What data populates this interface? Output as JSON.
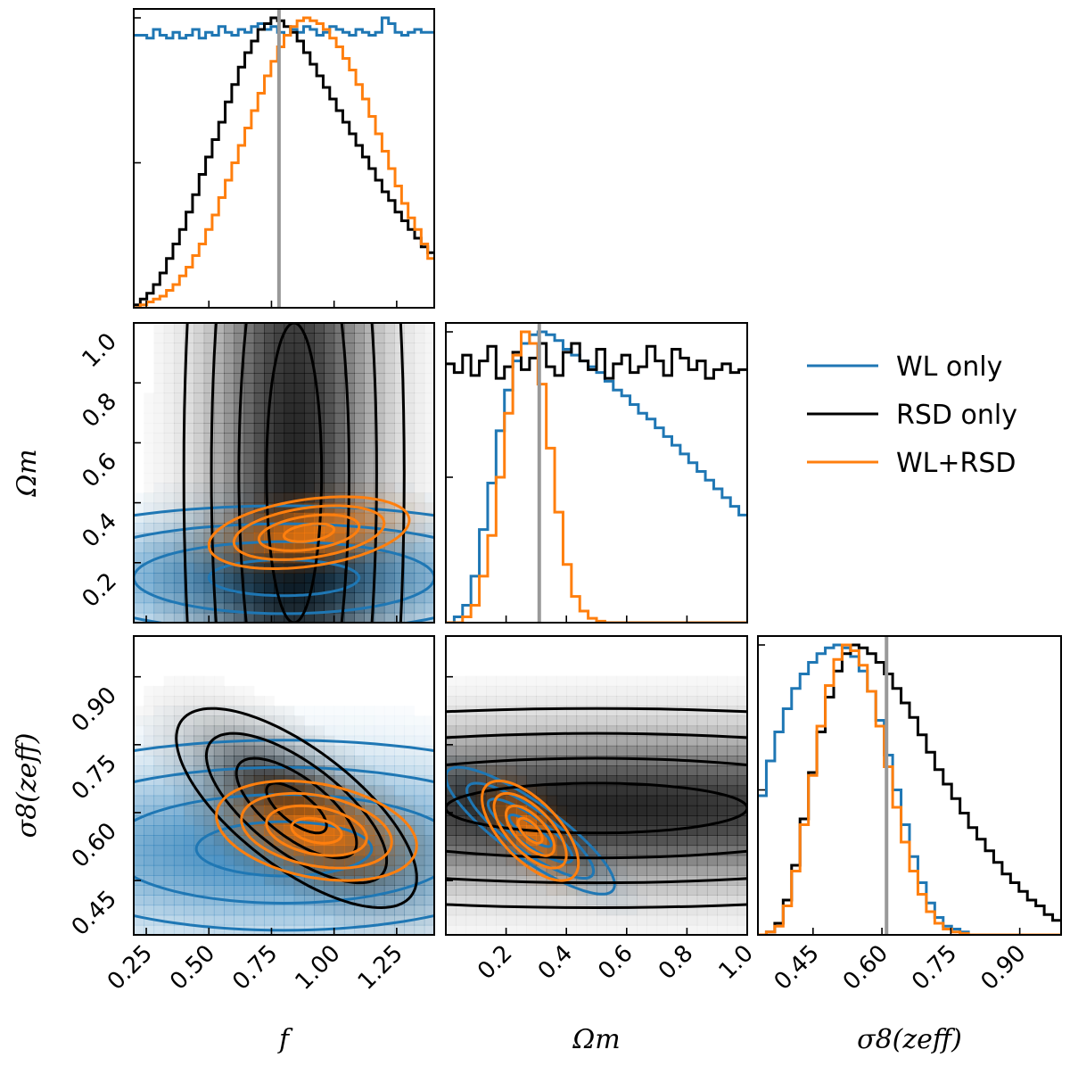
{
  "chart_data": {
    "type": "corner",
    "parameters": [
      {
        "key": "f",
        "label": "f",
        "range": [
          0.2,
          1.4
        ],
        "ticks": [
          0.25,
          0.5,
          0.75,
          1.0,
          1.25
        ],
        "tick_labels": [
          "0.25",
          "0.50",
          "0.75",
          "1.00",
          "1.25"
        ]
      },
      {
        "key": "Om",
        "label": "Ωm",
        "range": [
          0.0,
          1.0
        ],
        "ticks": [
          0.2,
          0.4,
          0.6,
          0.8,
          1.0
        ],
        "tick_labels": [
          "0.2",
          "0.4",
          "0.6",
          "0.8",
          "1.0"
        ]
      },
      {
        "key": "s8",
        "label": "σ8(zeff)",
        "range": [
          0.33,
          0.99
        ],
        "ticks": [
          0.45,
          0.6,
          0.75,
          0.9
        ],
        "tick_labels": [
          "0.45",
          "0.60",
          "0.75",
          "0.90"
        ]
      }
    ],
    "y_tick_labels": {
      "Om": [
        "0.2",
        "0.4",
        "0.6",
        "0.8",
        "1.0"
      ],
      "s8": [
        "0.45",
        "0.60",
        "0.75",
        "0.90"
      ]
    },
    "truth": {
      "f": 0.78,
      "Om": 0.31,
      "s8": 0.61
    },
    "series": [
      {
        "name": "WL only",
        "color": "#1f77b4"
      },
      {
        "name": "RSD only",
        "color": "#000000"
      },
      {
        "name": "WL+RSD",
        "color": "#ff7f0e"
      }
    ],
    "histograms": {
      "f": {
        "WL only": [
          0.94,
          0.94,
          0.93,
          0.96,
          0.94,
          0.93,
          0.95,
          0.93,
          0.94,
          0.96,
          0.93,
          0.95,
          0.94,
          0.97,
          0.95,
          0.94,
          0.96,
          0.95,
          0.97,
          0.98,
          0.96,
          0.97,
          0.95,
          0.94,
          0.96,
          0.95,
          0.97,
          0.96,
          0.94,
          0.95,
          0.97,
          0.96,
          0.95,
          0.94,
          0.96,
          0.95,
          0.94,
          0.95,
          1.0,
          0.98,
          0.95,
          0.94,
          0.95,
          0.96,
          0.95,
          0.95
        ],
        "RSD only": [
          0.01,
          0.03,
          0.05,
          0.08,
          0.12,
          0.17,
          0.22,
          0.27,
          0.33,
          0.39,
          0.46,
          0.52,
          0.58,
          0.64,
          0.71,
          0.77,
          0.83,
          0.88,
          0.92,
          0.96,
          0.98,
          1.0,
          0.99,
          0.97,
          0.95,
          0.92,
          0.88,
          0.84,
          0.8,
          0.76,
          0.72,
          0.68,
          0.64,
          0.6,
          0.56,
          0.52,
          0.48,
          0.44,
          0.4,
          0.37,
          0.33,
          0.3,
          0.27,
          0.24,
          0.21,
          0.19
        ],
        "WL+RSD": [
          0.0,
          0.01,
          0.02,
          0.03,
          0.04,
          0.06,
          0.08,
          0.11,
          0.14,
          0.18,
          0.22,
          0.27,
          0.32,
          0.38,
          0.44,
          0.5,
          0.56,
          0.62,
          0.68,
          0.74,
          0.8,
          0.85,
          0.9,
          0.94,
          0.97,
          0.99,
          1.0,
          0.99,
          0.98,
          0.96,
          0.93,
          0.9,
          0.86,
          0.82,
          0.77,
          0.72,
          0.66,
          0.6,
          0.54,
          0.48,
          0.42,
          0.36,
          0.31,
          0.27,
          0.22,
          0.17
        ]
      },
      "Om": {
        "WL only": [
          0.0,
          0.02,
          0.06,
          0.16,
          0.32,
          0.48,
          0.66,
          0.8,
          0.9,
          0.96,
          0.99,
          1.0,
          0.99,
          0.97,
          0.94,
          0.92,
          0.9,
          0.88,
          0.86,
          0.83,
          0.8,
          0.78,
          0.75,
          0.72,
          0.7,
          0.67,
          0.64,
          0.61,
          0.58,
          0.55,
          0.52,
          0.49,
          0.46,
          0.43,
          0.4,
          0.37
        ],
        "RSD only": [
          0.89,
          0.86,
          0.92,
          0.85,
          0.9,
          0.95,
          0.84,
          0.88,
          0.93,
          0.87,
          0.91,
          0.96,
          0.88,
          0.85,
          0.93,
          0.96,
          0.9,
          0.87,
          0.94,
          0.84,
          0.89,
          0.92,
          0.86,
          0.88,
          0.95,
          0.9,
          0.85,
          0.94,
          0.91,
          0.87,
          0.9,
          0.84,
          0.87,
          0.89,
          0.86,
          0.87
        ],
        "WL+RSD": [
          0.0,
          0.0,
          0.02,
          0.06,
          0.16,
          0.3,
          0.5,
          0.72,
          0.92,
          1.0,
          0.96,
          0.82,
          0.6,
          0.38,
          0.2,
          0.09,
          0.04,
          0.015,
          0.005,
          0.0,
          0.0,
          0.0,
          0.0,
          0.0,
          0.0,
          0.0,
          0.0,
          0.0,
          0.0,
          0.0,
          0.0,
          0.0,
          0.0,
          0.0,
          0.0,
          0.0
        ]
      },
      "s8": {
        "WL only": [
          0.48,
          0.6,
          0.7,
          0.78,
          0.85,
          0.9,
          0.94,
          0.97,
          0.99,
          1.0,
          0.99,
          0.96,
          0.91,
          0.84,
          0.74,
          0.62,
          0.5,
          0.38,
          0.27,
          0.18,
          0.11,
          0.06,
          0.03,
          0.02,
          0.01,
          0.0,
          0.0,
          0.0,
          0.0,
          0.0,
          0.0,
          0.0,
          0.0,
          0.0,
          0.0,
          0.0
        ],
        "RSD only": [
          0.0,
          0.01,
          0.04,
          0.12,
          0.24,
          0.4,
          0.56,
          0.7,
          0.82,
          0.91,
          0.97,
          1.0,
          0.99,
          0.97,
          0.94,
          0.9,
          0.85,
          0.8,
          0.75,
          0.69,
          0.63,
          0.57,
          0.52,
          0.47,
          0.42,
          0.37,
          0.33,
          0.29,
          0.25,
          0.21,
          0.18,
          0.15,
          0.12,
          0.1,
          0.07,
          0.05
        ],
        "WL+RSD": [
          0.0,
          0.01,
          0.03,
          0.1,
          0.22,
          0.38,
          0.55,
          0.72,
          0.86,
          0.95,
          1.0,
          0.98,
          0.93,
          0.84,
          0.72,
          0.58,
          0.44,
          0.32,
          0.22,
          0.14,
          0.08,
          0.04,
          0.02,
          0.01,
          0.005,
          0.0,
          0.0,
          0.0,
          0.0,
          0.0,
          0.0,
          0.0,
          0.0,
          0.0,
          0.0,
          0.0
        ]
      }
    },
    "posteriors_2d": {
      "Om_vs_f": {
        "WL only": {
          "mean": [
            0.8,
            0.15
          ],
          "sigma": [
            0.6,
            0.12
          ],
          "rho": 0.0,
          "cap": 2.6
        },
        "RSD only": {
          "mean": [
            0.84,
            0.5
          ],
          "sigma": [
            0.22,
            1.0
          ],
          "rho": 0.0,
          "cap": 2.6
        },
        "WL+RSD": {
          "mean": [
            0.9,
            0.3
          ],
          "sigma": [
            0.2,
            0.06
          ],
          "rho": 0.35,
          "cap": 2.6
        }
      },
      "s8_vs_f": {
        "WL only": {
          "mean": [
            0.8,
            0.52
          ],
          "sigma": [
            0.7,
            0.12
          ],
          "rho": 0.0,
          "cap": 2.6
        },
        "RSD only": {
          "mean": [
            0.85,
            0.61
          ],
          "sigma": [
            0.24,
            0.11
          ],
          "rho": -0.7,
          "cap": 2.6
        },
        "WL+RSD": {
          "mean": [
            0.93,
            0.56
          ],
          "sigma": [
            0.2,
            0.055
          ],
          "rho": -0.3,
          "cap": 2.6
        }
      },
      "s8_vs_Om": {
        "WL only": {
          "mean": [
            0.28,
            0.56
          ],
          "sigma": [
            0.14,
            0.07
          ],
          "rho": -0.85,
          "cap": 2.6
        },
        "RSD only": {
          "mean": [
            0.5,
            0.61
          ],
          "sigma": [
            1.0,
            0.11
          ],
          "rho": 0.0,
          "cap": 2.6
        },
        "WL+RSD": {
          "mean": [
            0.28,
            0.56
          ],
          "sigma": [
            0.08,
            0.055
          ],
          "rho": -0.65,
          "cap": 2.6
        }
      }
    },
    "contour_levels_sigma": [
      0.5,
      1.0,
      1.5,
      2.0
    ],
    "legend": {
      "placement": "upper-right"
    }
  }
}
